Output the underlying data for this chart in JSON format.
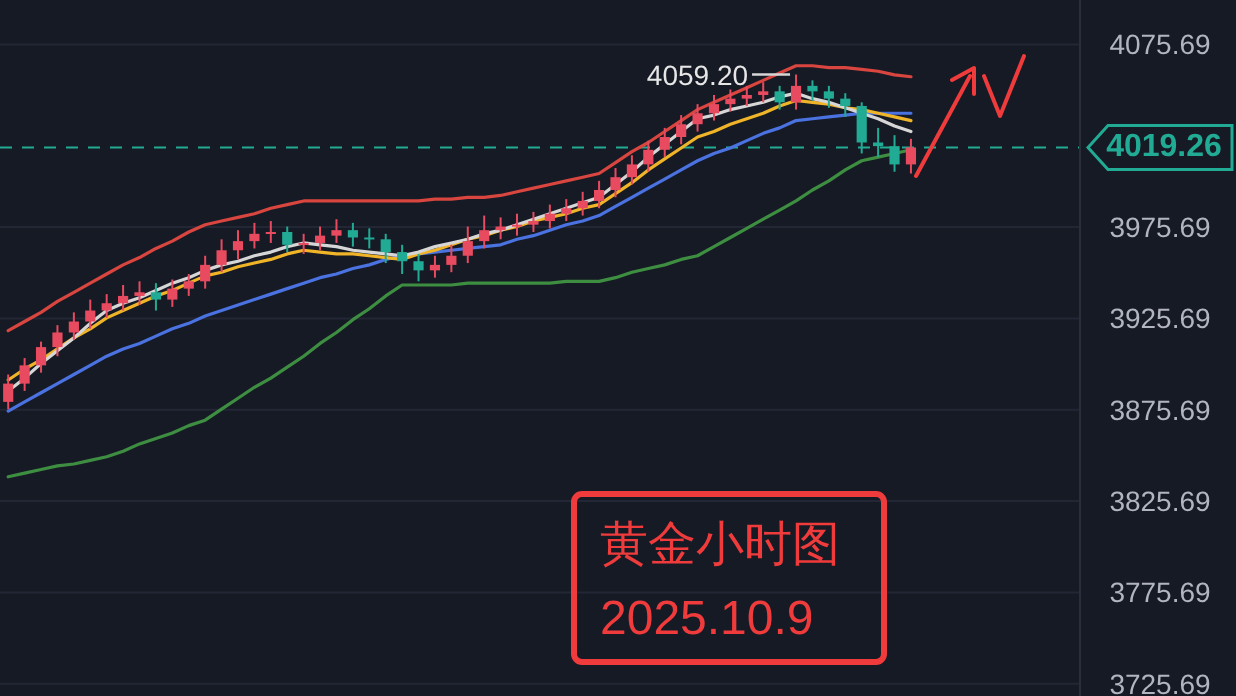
{
  "chart_data": {
    "type": "candlestick",
    "categories": [
      null,
      null,
      null,
      null,
      null,
      null,
      null,
      null,
      null,
      null,
      null,
      null,
      null,
      null,
      null,
      null,
      null,
      null,
      null,
      null,
      null,
      null,
      null,
      null,
      null,
      null,
      null,
      null,
      null,
      null,
      null,
      null,
      null,
      null,
      null,
      null,
      null,
      null,
      null,
      null,
      null,
      null,
      null,
      null,
      null,
      null,
      null,
      null,
      null,
      null,
      null,
      null,
      null,
      null,
      null,
      null
    ],
    "ohlc": [
      [
        3880,
        3895,
        3876,
        3890
      ],
      [
        3890,
        3904,
        3886,
        3900
      ],
      [
        3900,
        3913,
        3896,
        3910
      ],
      [
        3910,
        3922,
        3905,
        3918
      ],
      [
        3918,
        3929,
        3914,
        3924
      ],
      [
        3924,
        3936,
        3920,
        3930
      ],
      [
        3930,
        3939,
        3926,
        3934
      ],
      [
        3934,
        3944,
        3930,
        3938
      ],
      [
        3938,
        3946,
        3933,
        3940
      ],
      [
        3940,
        3945,
        3930,
        3936
      ],
      [
        3936,
        3947,
        3932,
        3942
      ],
      [
        3942,
        3950,
        3938,
        3946
      ],
      [
        3946,
        3960,
        3942,
        3955
      ],
      [
        3955,
        3969,
        3951,
        3963
      ],
      [
        3963,
        3974,
        3958,
        3968
      ],
      [
        3968,
        3978,
        3964,
        3972
      ],
      [
        3972,
        3979,
        3967,
        3973
      ],
      [
        3973,
        3976,
        3962,
        3966
      ],
      [
        3966,
        3972,
        3961,
        3967
      ],
      [
        3967,
        3976,
        3963,
        3971
      ],
      [
        3971,
        3980,
        3967,
        3974
      ],
      [
        3974,
        3978,
        3965,
        3970
      ],
      [
        3970,
        3975,
        3964,
        3969
      ],
      [
        3969,
        3972,
        3956,
        3962
      ],
      [
        3962,
        3966,
        3950,
        3957
      ],
      [
        3957,
        3961,
        3946,
        3952
      ],
      [
        3952,
        3960,
        3948,
        3955
      ],
      [
        3955,
        3966,
        3951,
        3960
      ],
      [
        3960,
        3976,
        3956,
        3968
      ],
      [
        3968,
        3982,
        3964,
        3974
      ],
      [
        3974,
        3981,
        3969,
        3976
      ],
      [
        3976,
        3983,
        3971,
        3977
      ],
      [
        3977,
        3984,
        3973,
        3979
      ],
      [
        3979,
        3988,
        3975,
        3983
      ],
      [
        3983,
        3991,
        3979,
        3986
      ],
      [
        3986,
        3995,
        3982,
        3990
      ],
      [
        3990,
        4001,
        3986,
        3996
      ],
      [
        3996,
        4008,
        3992,
        4003
      ],
      [
        4003,
        4015,
        3999,
        4010
      ],
      [
        4010,
        4023,
        4006,
        4018
      ],
      [
        4018,
        4030,
        4014,
        4025
      ],
      [
        4025,
        4037,
        4021,
        4032
      ],
      [
        4032,
        4043,
        4028,
        4038
      ],
      [
        4038,
        4048,
        4034,
        4043
      ],
      [
        4043,
        4051,
        4039,
        4046
      ],
      [
        4046,
        4053,
        4042,
        4048
      ],
      [
        4048,
        4055,
        4044,
        4050
      ],
      [
        4050,
        4053,
        4040,
        4044
      ],
      [
        4044,
        4059.2,
        4040,
        4053
      ],
      [
        4053,
        4056,
        4045,
        4050
      ],
      [
        4050,
        4053,
        4041,
        4046
      ],
      [
        4046,
        4049,
        4036,
        4042
      ],
      [
        4042,
        4044,
        4016,
        4022
      ],
      [
        4022,
        4030,
        4014,
        4020
      ],
      [
        4020,
        4026,
        4006,
        4010
      ],
      [
        4010,
        4024,
        4005,
        4019.26
      ]
    ],
    "colors": [
      "#e84a5f",
      "#e84a5f",
      "#e84a5f",
      "#e84a5f",
      "#e84a5f",
      "#e84a5f",
      "#e84a5f",
      "#e84a5f",
      "#e84a5f",
      "#22ab94",
      "#e84a5f",
      "#e84a5f",
      "#e84a5f",
      "#e84a5f",
      "#e84a5f",
      "#e84a5f",
      "#e84a5f",
      "#22ab94",
      "#e84a5f",
      "#e84a5f",
      "#e84a5f",
      "#22ab94",
      "#22ab94",
      "#22ab94",
      "#22ab94",
      "#22ab94",
      "#e84a5f",
      "#e84a5f",
      "#e84a5f",
      "#e84a5f",
      "#e84a5f",
      "#e84a5f",
      "#e84a5f",
      "#e84a5f",
      "#e84a5f",
      "#e84a5f",
      "#e84a5f",
      "#e84a5f",
      "#e84a5f",
      "#e84a5f",
      "#e84a5f",
      "#e84a5f",
      "#e84a5f",
      "#e84a5f",
      "#e84a5f",
      "#e84a5f",
      "#e84a5f",
      "#22ab94",
      "#e84a5f",
      "#22ab94",
      "#22ab94",
      "#22ab94",
      "#22ab94",
      "#22ab94",
      "#22ab94",
      "#e84a5f"
    ],
    "series": [
      {
        "type": "line",
        "color": "#3e8e41",
        "values": [
          3839,
          3841,
          3843,
          3845,
          3846,
          3848,
          3850,
          3853,
          3857,
          3860,
          3863,
          3867,
          3870,
          3876,
          3882,
          3888,
          3893,
          3899,
          3905,
          3912,
          3918,
          3925,
          3931,
          3938,
          3944,
          3944,
          3944,
          3944,
          3945,
          3945,
          3945,
          3945,
          3945,
          3945,
          3946,
          3946,
          3946,
          3948,
          3951,
          3953,
          3955,
          3958,
          3960,
          3965,
          3970,
          3975,
          3980,
          3985,
          3990,
          3996,
          4001,
          4007,
          4012,
          4014,
          4016,
          4018
        ]
      },
      {
        "type": "line",
        "color": "#4a72e0",
        "values": [
          3875,
          3880,
          3885,
          3890,
          3895,
          3900,
          3905,
          3909,
          3912,
          3916,
          3920,
          3923,
          3927,
          3930,
          3933,
          3936,
          3939,
          3942,
          3945,
          3948,
          3950,
          3953,
          3955,
          3958,
          3960,
          3961,
          3962,
          3963,
          3964,
          3965,
          3966,
          3969,
          3971,
          3974,
          3977,
          3979,
          3982,
          3987,
          3992,
          3997,
          4002,
          4007,
          4012,
          4016,
          4019,
          4023,
          4027,
          4030,
          4034,
          4035,
          4036,
          4037,
          4038,
          4038,
          4038,
          4038
        ]
      },
      {
        "type": "line",
        "color": "#f0b429",
        "values": [
          3892,
          3898,
          3903,
          3909,
          3915,
          3920,
          3926,
          3930,
          3934,
          3938,
          3941,
          3945,
          3949,
          3951,
          3954,
          3956,
          3958,
          3961,
          3963,
          3962,
          3961,
          3961,
          3960,
          3959,
          3958,
          3961,
          3963,
          3966,
          3969,
          3971,
          3974,
          3976,
          3979,
          3981,
          3983,
          3986,
          3988,
          3994,
          4000,
          4007,
          4013,
          4019,
          4025,
          4028,
          4032,
          4035,
          4038,
          4042,
          4045,
          4044,
          4043,
          4041,
          4040,
          4038,
          4036,
          4034
        ]
      },
      {
        "type": "line",
        "color": "#d6d6d6",
        "values": [
          3886,
          3893,
          3901,
          3908,
          3915,
          3923,
          3930,
          3934,
          3937,
          3941,
          3945,
          3948,
          3952,
          3955,
          3957,
          3960,
          3962,
          3965,
          3967,
          3966,
          3965,
          3963,
          3962,
          3961,
          3960,
          3962,
          3965,
          3967,
          3969,
          3972,
          3974,
          3977,
          3980,
          3983,
          3986,
          3989,
          3992,
          3999,
          4006,
          4014,
          4021,
          4028,
          4035,
          4037,
          4040,
          4042,
          4044,
          4047,
          4049,
          4046,
          4044,
          4041,
          4038,
          4035,
          4031,
          4028
        ]
      },
      {
        "type": "line",
        "color": "#d9453f",
        "values": [
          3919,
          3924,
          3929,
          3935,
          3940,
          3945,
          3950,
          3955,
          3959,
          3964,
          3968,
          3973,
          3977,
          3979,
          3981,
          3983,
          3986,
          3988,
          3990,
          3990,
          3990,
          3990,
          3990,
          3990,
          3990,
          3990,
          3991,
          3991,
          3992,
          3992,
          3993,
          3995,
          3997,
          3999,
          4001,
          4003,
          4005,
          4011,
          4017,
          4022,
          4028,
          4034,
          4040,
          4044,
          4048,
          4052,
          4056,
          4060,
          4064,
          4064,
          4063,
          4063,
          4062,
          4061,
          4059,
          4058
        ]
      }
    ],
    "ylim": [
      3719,
      4100
    ],
    "yticks": [
      3725.69,
      3775.69,
      3825.69,
      3875.69,
      3925.69,
      3975.69,
      4075.69
    ],
    "grid": "y",
    "tick_labels": "y",
    "ref_lines": [
      {
        "axis": "y",
        "value": 4019.26,
        "label": "4019.26",
        "color": "#22ab94",
        "line_style": "dashed"
      }
    ],
    "annotations": [
      "4059.20",
      "黄金小时图",
      "2025.10.9"
    ]
  }
}
